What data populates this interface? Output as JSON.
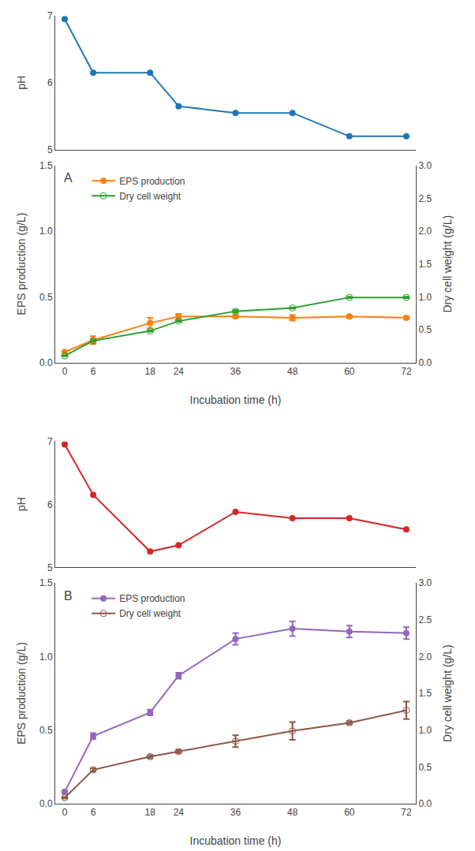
{
  "chart_data": [
    {
      "type": "line",
      "x": [
        0,
        6,
        18,
        24,
        36,
        48,
        60,
        72
      ],
      "values": [
        6.95,
        6.15,
        6.15,
        5.65,
        5.55,
        5.55,
        5.2,
        5.2
      ],
      "ylabel": "pH",
      "xlim": [
        -2,
        74
      ],
      "xticks": [
        0,
        6,
        18,
        24,
        36,
        48,
        60,
        72
      ],
      "ylim": [
        5.0,
        7.0
      ],
      "yticks": [
        5,
        6,
        7
      ],
      "tick_labels": "y",
      "marker": "circle",
      "grid": false
    },
    {
      "type": "line",
      "x": [
        0,
        6,
        18,
        24,
        36,
        48,
        60,
        72
      ],
      "xlabel": "Incubation time (h)",
      "ylabel": "EPS production (g/L)",
      "y2label": "Dry cell weight (g/L)",
      "series": [
        {
          "name": "EPS production",
          "marker": "circle",
          "values": [
            0.08,
            0.17,
            0.3,
            0.35,
            0.35,
            0.34,
            0.35,
            0.34
          ],
          "errors": [
            0.005,
            0.03,
            0.04,
            0.02,
            0.01,
            0.02,
            0.01,
            0.01
          ]
        },
        {
          "name": "Dry cell weight",
          "marker": "circle-open",
          "axis": "y2",
          "values": [
            0.1,
            0.33,
            0.48,
            0.63,
            0.78,
            0.83,
            0.99,
            0.99
          ],
          "errors": [
            0.005,
            0.01,
            0.01,
            0.01,
            0.02,
            0.01,
            0.01,
            0.01
          ]
        }
      ],
      "xlim": [
        -2,
        74
      ],
      "xticks": [
        0,
        6,
        18,
        24,
        36,
        48,
        60,
        72
      ],
      "ylim": [
        0.0,
        1.5
      ],
      "yticks": [
        {
          "value": 0.0,
          "label": "0.0"
        },
        {
          "value": 0.5,
          "label": "0.5"
        },
        {
          "value": 1.0,
          "label": "1.0"
        },
        {
          "value": 1.5,
          "label": "1.5"
        }
      ],
      "y2lim": [
        0.0,
        3.0
      ],
      "y2ticks": [
        {
          "value": 0.0,
          "label": "0.0"
        },
        {
          "value": 0.5,
          "label": "0.5"
        },
        {
          "value": 1.0,
          "label": "1.0"
        },
        {
          "value": 1.5,
          "label": "1.5"
        },
        {
          "value": 2.0,
          "label": "2.0"
        },
        {
          "value": 2.5,
          "label": "2.5"
        },
        {
          "value": 3.0,
          "label": "3.0"
        }
      ],
      "legend": "upper left",
      "grid": false,
      "annotations": [
        {
          "text": "A"
        }
      ]
    },
    {
      "type": "line",
      "x": [
        0,
        6,
        18,
        24,
        36,
        48,
        60,
        72
      ],
      "values": [
        6.95,
        6.15,
        5.25,
        5.35,
        5.88,
        5.78,
        5.78,
        5.6
      ],
      "ylabel": "pH",
      "xlim": [
        -2,
        74
      ],
      "xticks": [
        0,
        6,
        18,
        24,
        36,
        48,
        60,
        72
      ],
      "ylim": [
        5.0,
        7.0
      ],
      "yticks": [
        5,
        6,
        7
      ],
      "tick_labels": "y",
      "marker": "circle",
      "grid": false
    },
    {
      "type": "line",
      "x": [
        0,
        6,
        18,
        24,
        36,
        48,
        60,
        72
      ],
      "xlabel": "Incubation time (h)",
      "ylabel": "EPS production (g/L)",
      "y2label": "Dry cell weight (g/L)",
      "series": [
        {
          "name": "EPS production",
          "marker": "circle",
          "values": [
            0.08,
            0.46,
            0.62,
            0.87,
            1.12,
            1.19,
            1.17,
            1.16
          ],
          "errors": [
            0.01,
            0.02,
            0.02,
            0.02,
            0.04,
            0.05,
            0.04,
            0.04
          ]
        },
        {
          "name": "Dry cell weight",
          "marker": "circle-open",
          "axis": "y2",
          "values": [
            0.08,
            0.46,
            0.64,
            0.71,
            0.85,
            0.99,
            1.1,
            1.27
          ],
          "errors": [
            0.01,
            0.02,
            0.02,
            0.02,
            0.08,
            0.12,
            0.02,
            0.12
          ]
        }
      ],
      "xlim": [
        -2,
        74
      ],
      "xticks": [
        0,
        6,
        18,
        24,
        36,
        48,
        60,
        72
      ],
      "ylim": [
        0.0,
        1.5
      ],
      "yticks": [
        {
          "value": 0.0,
          "label": "0.0"
        },
        {
          "value": 0.5,
          "label": "0.5"
        },
        {
          "value": 1.0,
          "label": "1.0"
        },
        {
          "value": 1.5,
          "label": "1.5"
        }
      ],
      "y2lim": [
        0.0,
        3.0
      ],
      "y2ticks": [
        {
          "value": 0.0,
          "label": "0.0"
        },
        {
          "value": 0.5,
          "label": "0.5"
        },
        {
          "value": 1.0,
          "label": "1.0"
        },
        {
          "value": 1.5,
          "label": "1.5"
        },
        {
          "value": 2.0,
          "label": "2.0"
        },
        {
          "value": 2.5,
          "label": "2.5"
        },
        {
          "value": 3.0,
          "label": "3.0"
        }
      ],
      "legend": "upper left",
      "grid": false,
      "annotations": [
        {
          "text": "B"
        }
      ]
    }
  ]
}
